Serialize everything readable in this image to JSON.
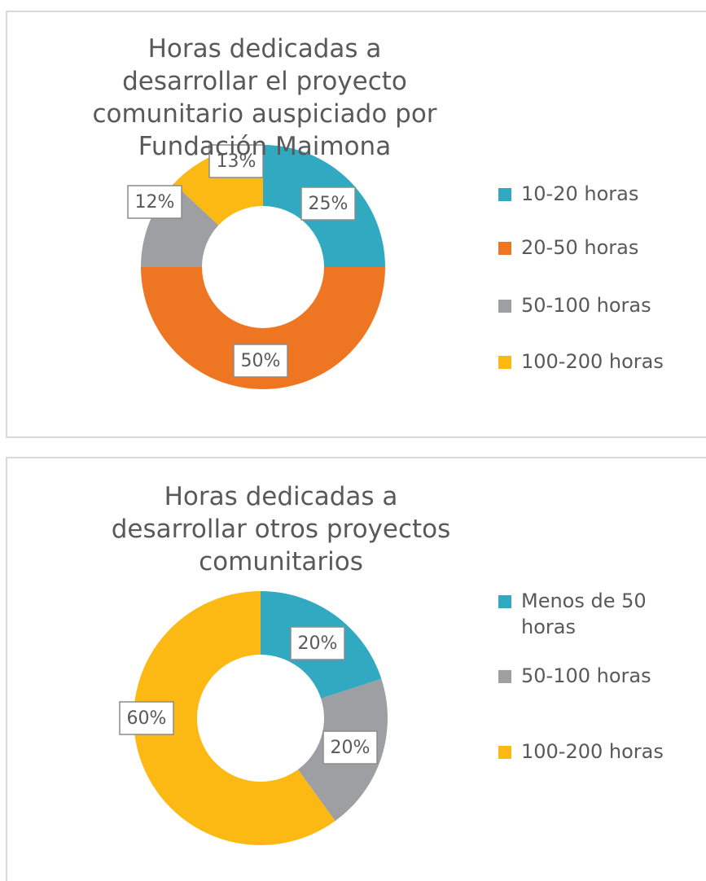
{
  "chart_data": [
    {
      "type": "donut",
      "title": "Horas dedicadas a desarrollar el proyecto comunitario auspiciado por Fundación Maimona",
      "categories": [
        "10-20 horas",
        "20-50 horas",
        "50-100 horas",
        "100-200 horas"
      ],
      "values": [
        25,
        50,
        12,
        13
      ],
      "value_labels": [
        "25%",
        "50%",
        "12%",
        "13%"
      ],
      "colors": [
        "#31a9c1",
        "#ee7623",
        "#9d9fa2",
        "#fcb914"
      ],
      "legend": "right"
    },
    {
      "type": "donut",
      "title": "Horas dedicadas a desarrollar otros proyectos comunitarios",
      "categories": [
        "Menos de 50 horas",
        "50-100 horas",
        "100-200 horas"
      ],
      "values": [
        20,
        20,
        60
      ],
      "value_labels": [
        "20%",
        "20%",
        "60%"
      ],
      "colors": [
        "#31a9c1",
        "#9d9fa2",
        "#fcb914"
      ],
      "legend": "right"
    }
  ]
}
